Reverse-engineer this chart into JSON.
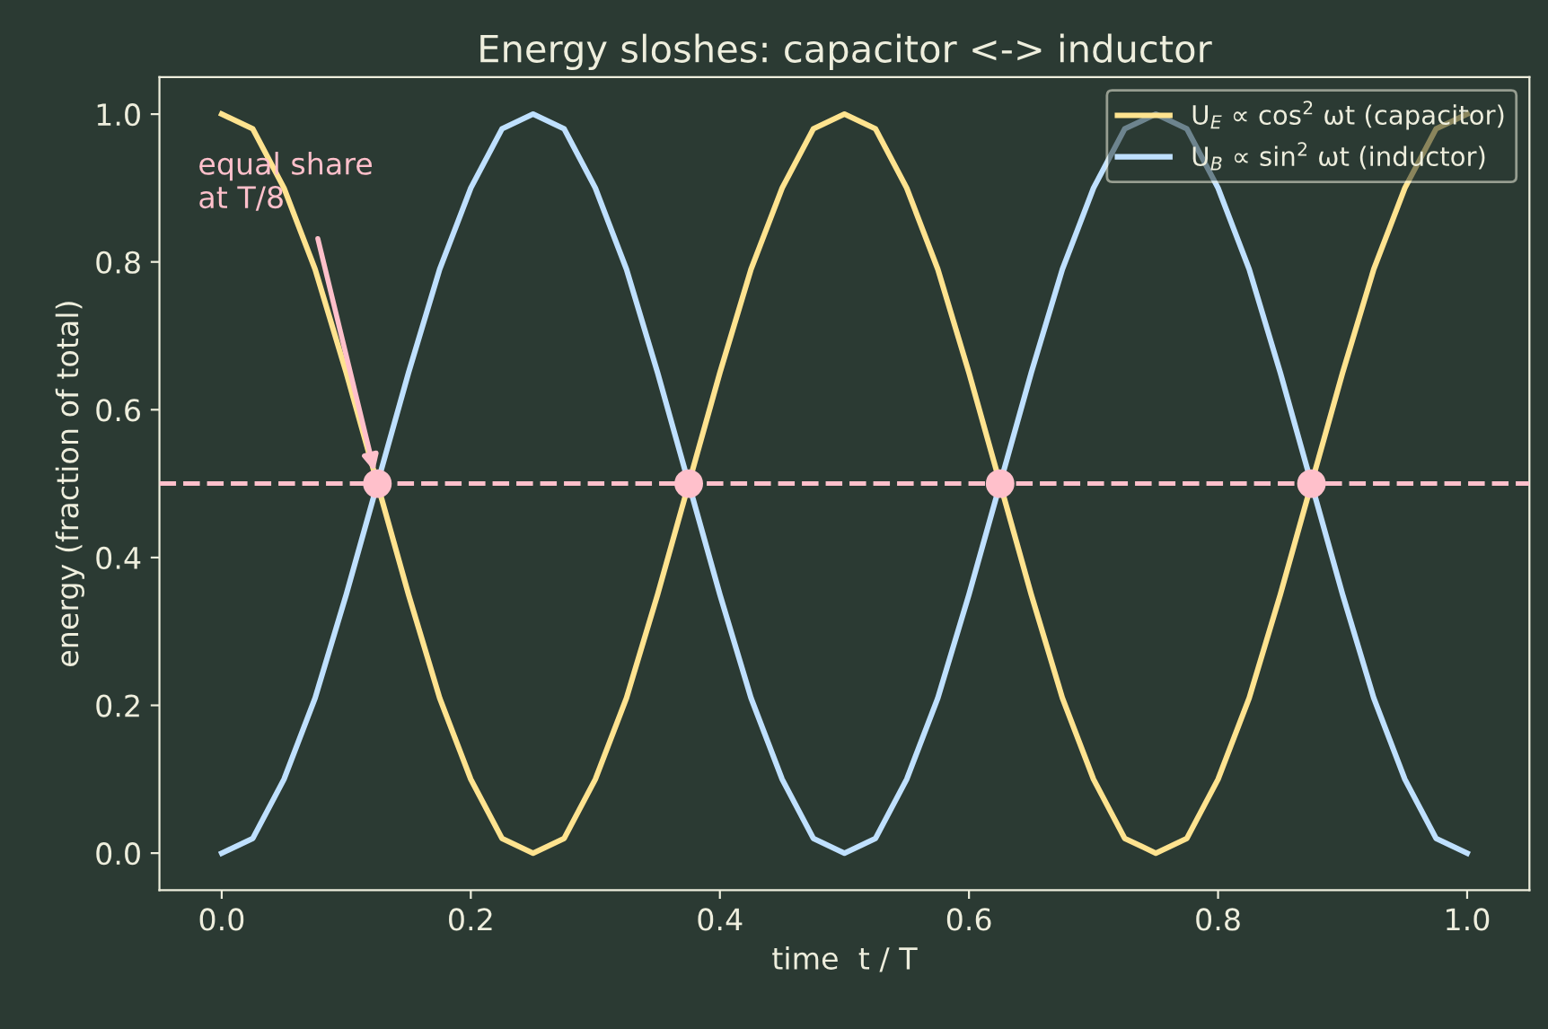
{
  "chart_data": {
    "type": "line",
    "title": "Energy sloshes: capacitor <-> inductor",
    "xlabel": "time  t / T",
    "ylabel": "energy (fraction of total)",
    "x": [
      0,
      0.025,
      0.05,
      0.075,
      0.1,
      0.125,
      0.15,
      0.175,
      0.2,
      0.225,
      0.25,
      0.275,
      0.3,
      0.325,
      0.35,
      0.375,
      0.4,
      0.425,
      0.45,
      0.475,
      0.5,
      0.525,
      0.55,
      0.575,
      0.6,
      0.625,
      0.65,
      0.675,
      0.7,
      0.725,
      0.75,
      0.775,
      0.8,
      0.825,
      0.85,
      0.875,
      0.9,
      0.925,
      0.95,
      0.975,
      1
    ],
    "series": [
      {
        "name": "U$_{E}$ ∝ cos$^{2}$ ωt (capacitor)",
        "color": "#ffe38f",
        "values": [
          1,
          0.98,
          0.9,
          0.79,
          0.65,
          0.5,
          0.35,
          0.21,
          0.1,
          0.02,
          0,
          0.02,
          0.1,
          0.21,
          0.35,
          0.5,
          0.65,
          0.79,
          0.9,
          0.98,
          1,
          0.98,
          0.9,
          0.79,
          0.65,
          0.5,
          0.35,
          0.21,
          0.1,
          0.02,
          0,
          0.02,
          0.1,
          0.21,
          0.35,
          0.5,
          0.65,
          0.79,
          0.9,
          0.98,
          1
        ]
      },
      {
        "name": "U$_{B}$ ∝ sin$^{2}$ ωt (inductor)",
        "color": "#bfe0ff",
        "values": [
          0,
          0.02,
          0.1,
          0.21,
          0.35,
          0.5,
          0.65,
          0.79,
          0.9,
          0.98,
          1,
          0.98,
          0.9,
          0.79,
          0.65,
          0.5,
          0.35,
          0.21,
          0.1,
          0.02,
          0,
          0.02,
          0.1,
          0.21,
          0.35,
          0.5,
          0.65,
          0.79,
          0.9,
          0.98,
          1,
          0.98,
          0.9,
          0.79,
          0.65,
          0.5,
          0.35,
          0.21,
          0.1,
          0.02,
          0
        ]
      },
      {
        "type": "scatter",
        "color": "#ffc0cb",
        "marker": "circle",
        "x": [
          0.125,
          0.375,
          0.625,
          0.875
        ],
        "values": [
          0.5,
          0.5,
          0.5,
          0.5
        ]
      }
    ],
    "ref_lines": [
      {
        "axis": "y",
        "value": 0.5,
        "color": "#ffc0cb",
        "line_style": "dashed"
      }
    ],
    "annotations": [
      "equal share\nat T/8"
    ],
    "xlim": [
      -0.05,
      1.05
    ],
    "ylim": [
      -0.05,
      1.05
    ],
    "xticks": [
      {
        "value": 0,
        "label": "0.0"
      },
      0.2,
      0.4,
      0.6,
      0.8,
      {
        "value": 1,
        "label": "1.0"
      }
    ],
    "yticks": [
      {
        "value": 0,
        "label": "0.0"
      },
      0.2,
      0.4,
      0.6,
      0.8,
      {
        "value": 1,
        "label": "1.0"
      }
    ],
    "grid": false,
    "legend": "top right",
    "marker": "none",
    "line_style": "solid"
  }
}
